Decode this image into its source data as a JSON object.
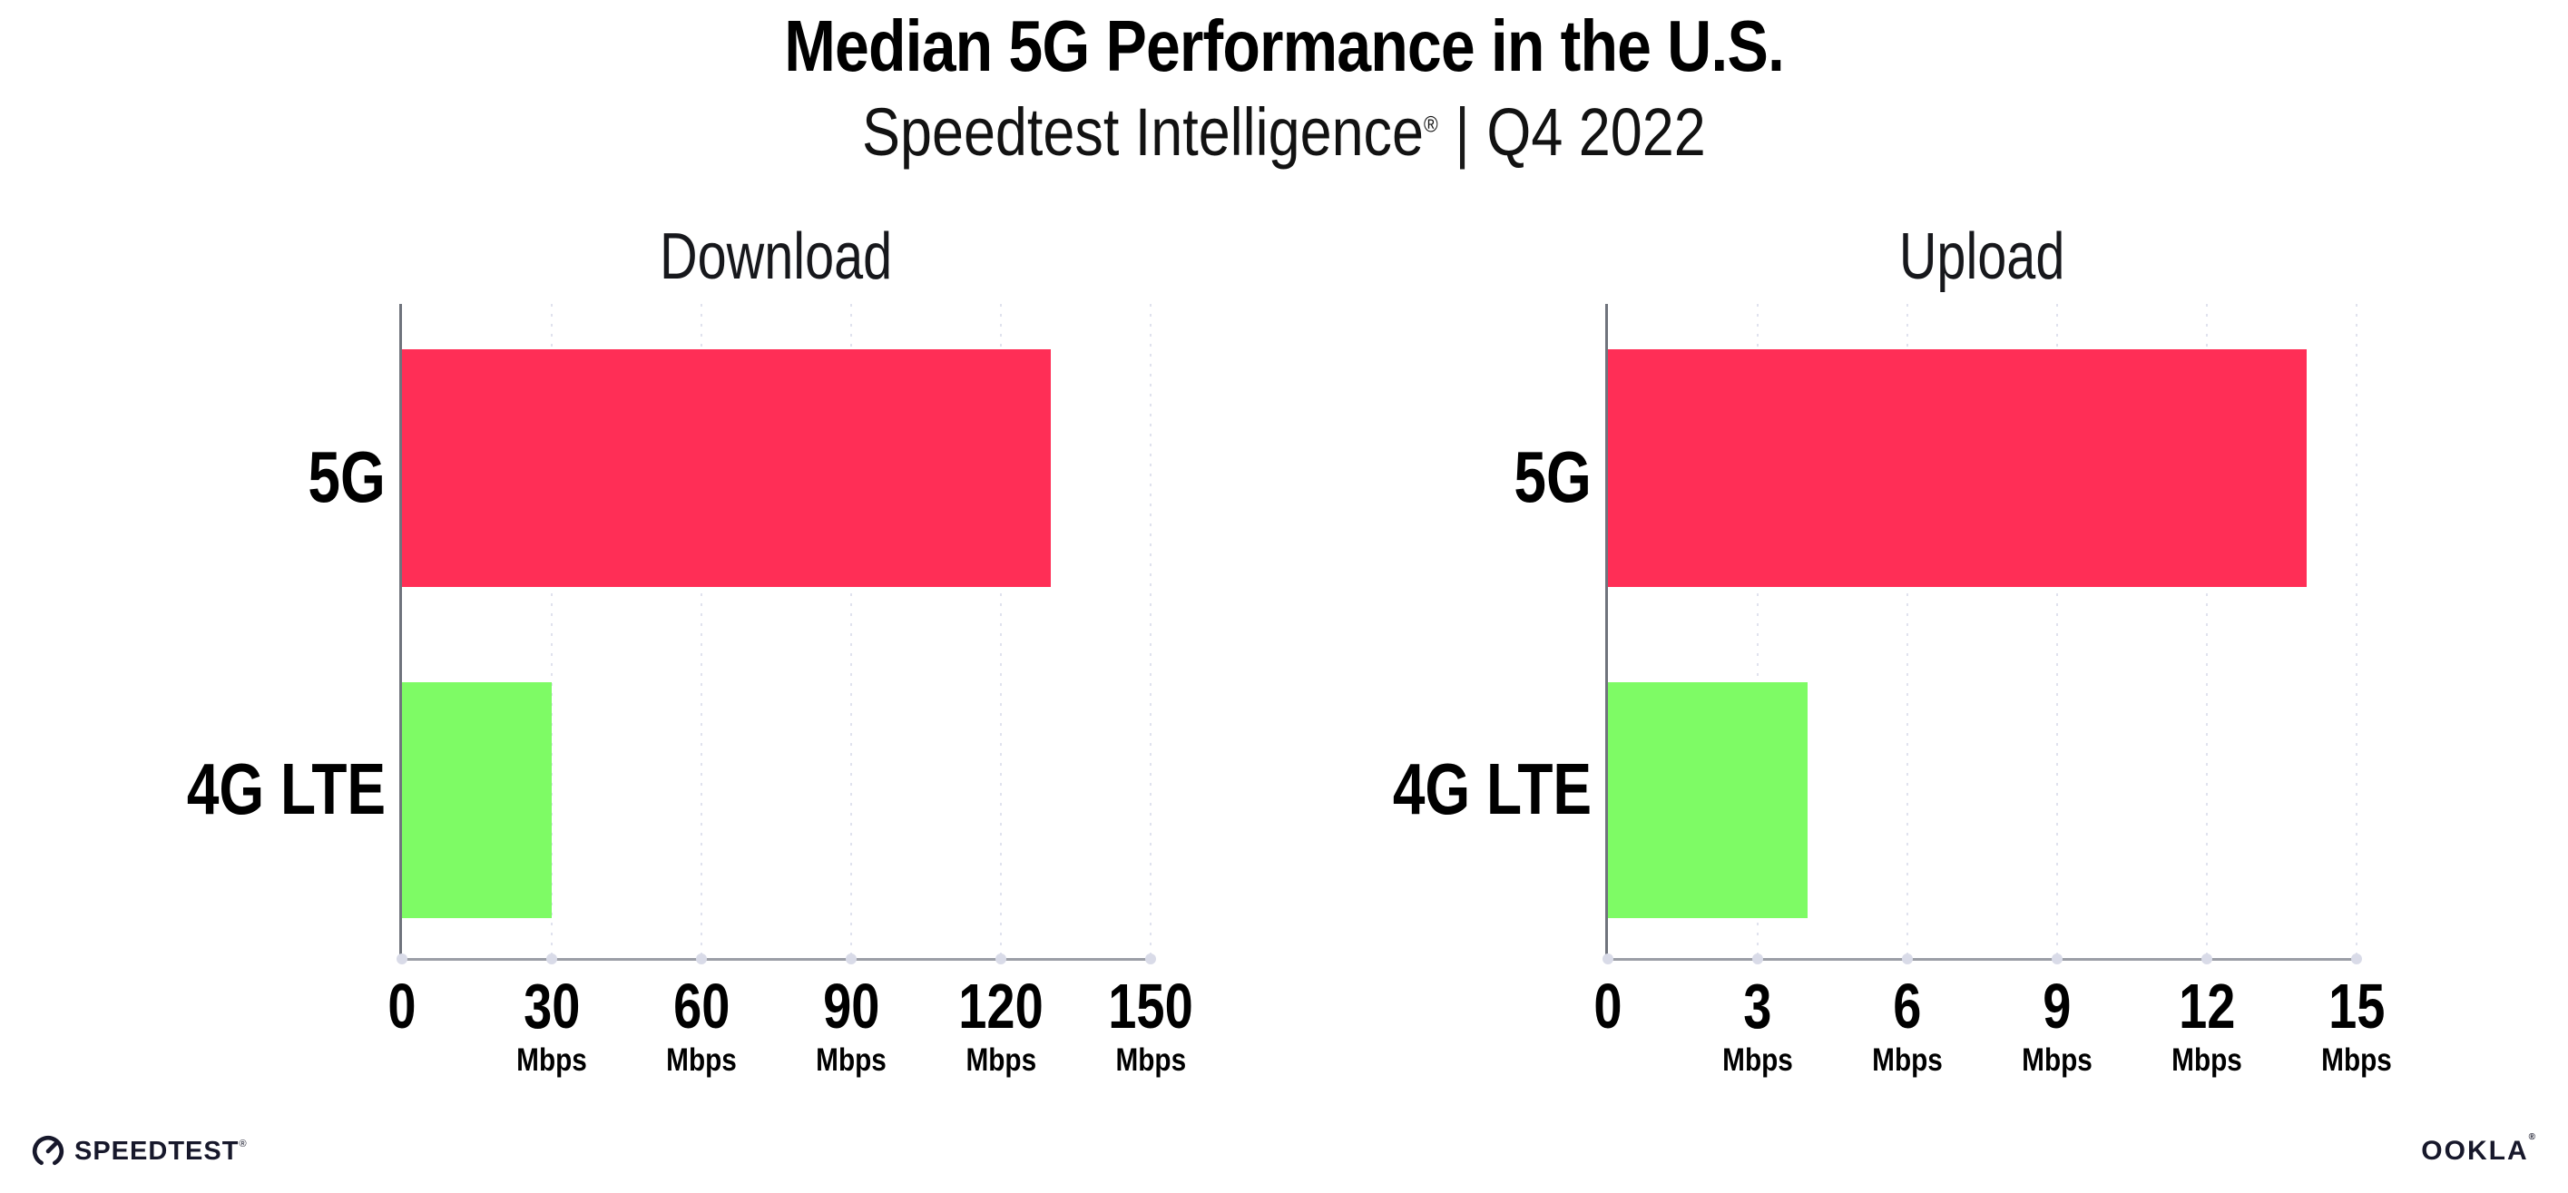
{
  "header": {
    "title": "Median 5G Performance in the U.S.",
    "subtitle_brand": "Speedtest Intelligence",
    "subtitle_reg": "®",
    "subtitle_sep": "|",
    "subtitle_period": "Q4 2022"
  },
  "chart_data": [
    {
      "type": "bar",
      "orientation": "horizontal",
      "title": "Download",
      "categories": [
        "5G",
        "4G LTE"
      ],
      "values": [
        130,
        30
      ],
      "unit": "Mbps",
      "xlim": [
        0,
        150
      ],
      "xticks": [
        0,
        30,
        60,
        90,
        120,
        150
      ],
      "tick_unit_label": "Mbps",
      "bar_colors": [
        "#FF2E56",
        "#7EFB65"
      ],
      "grid": "dotted-vertical",
      "legend": "none"
    },
    {
      "type": "bar",
      "orientation": "horizontal",
      "title": "Upload",
      "categories": [
        "5G",
        "4G LTE"
      ],
      "values": [
        14,
        4
      ],
      "unit": "Mbps",
      "xlim": [
        0,
        15
      ],
      "xticks": [
        0,
        3,
        6,
        9,
        12,
        15
      ],
      "tick_unit_label": "Mbps",
      "bar_colors": [
        "#FF2E56",
        "#7EFB65"
      ],
      "grid": "dotted-vertical",
      "legend": "none"
    }
  ],
  "footer": {
    "speedtest_text": "SPEEDTEST",
    "speedtest_reg": "®",
    "ookla_text": "OOKLA",
    "ookla_reg": "®"
  },
  "colors": {
    "bar_5g": "#FF2E56",
    "bar_4g_lte": "#7EFB65",
    "axis_x": "#9b9ea6",
    "axis_y": "#6f737c",
    "gridline": "#e0e2ee",
    "axis_dot": "#d9dbe8",
    "text": "#000000",
    "background": "#ffffff"
  }
}
